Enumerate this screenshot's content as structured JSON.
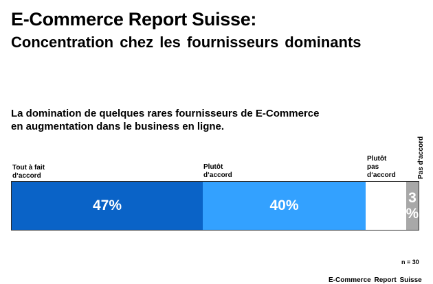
{
  "header": {
    "title": "E-Commerce Report Suisse:",
    "subtitle": "Concentration chez les fournisseurs dominants"
  },
  "chart_data": {
    "type": "bar",
    "title": "La domination de quelques rares fournisseurs de E-Commerce\nen augmentation dans le business en ligne.",
    "categories": [
      "Tout à fait d‘accord",
      "Plutôt d‘accord",
      "Plutôt pas d‘accord",
      "Pas d‘accord"
    ],
    "values": [
      47,
      40,
      10,
      3
    ],
    "data_labels": [
      "47%",
      "40%",
      "",
      "3\n%"
    ],
    "colors": [
      "#0a63c7",
      "#33a1ff",
      "#ffffff",
      "#a8a8a8"
    ],
    "stacked": true,
    "orientation": "horizontal",
    "xlim": [
      0,
      100
    ],
    "legend": "inline-top",
    "grid": false
  },
  "labels": {
    "tout": "Tout  à  fait\nd‘accord",
    "plutot": "Plutôt\nd‘accord",
    "plutot_pas": "Plutôt\npas\nd‘accord",
    "pas": "Pas  d‘accord"
  },
  "footer": {
    "n": "n = 30",
    "source": "E-Commerce  Report  Suisse"
  }
}
